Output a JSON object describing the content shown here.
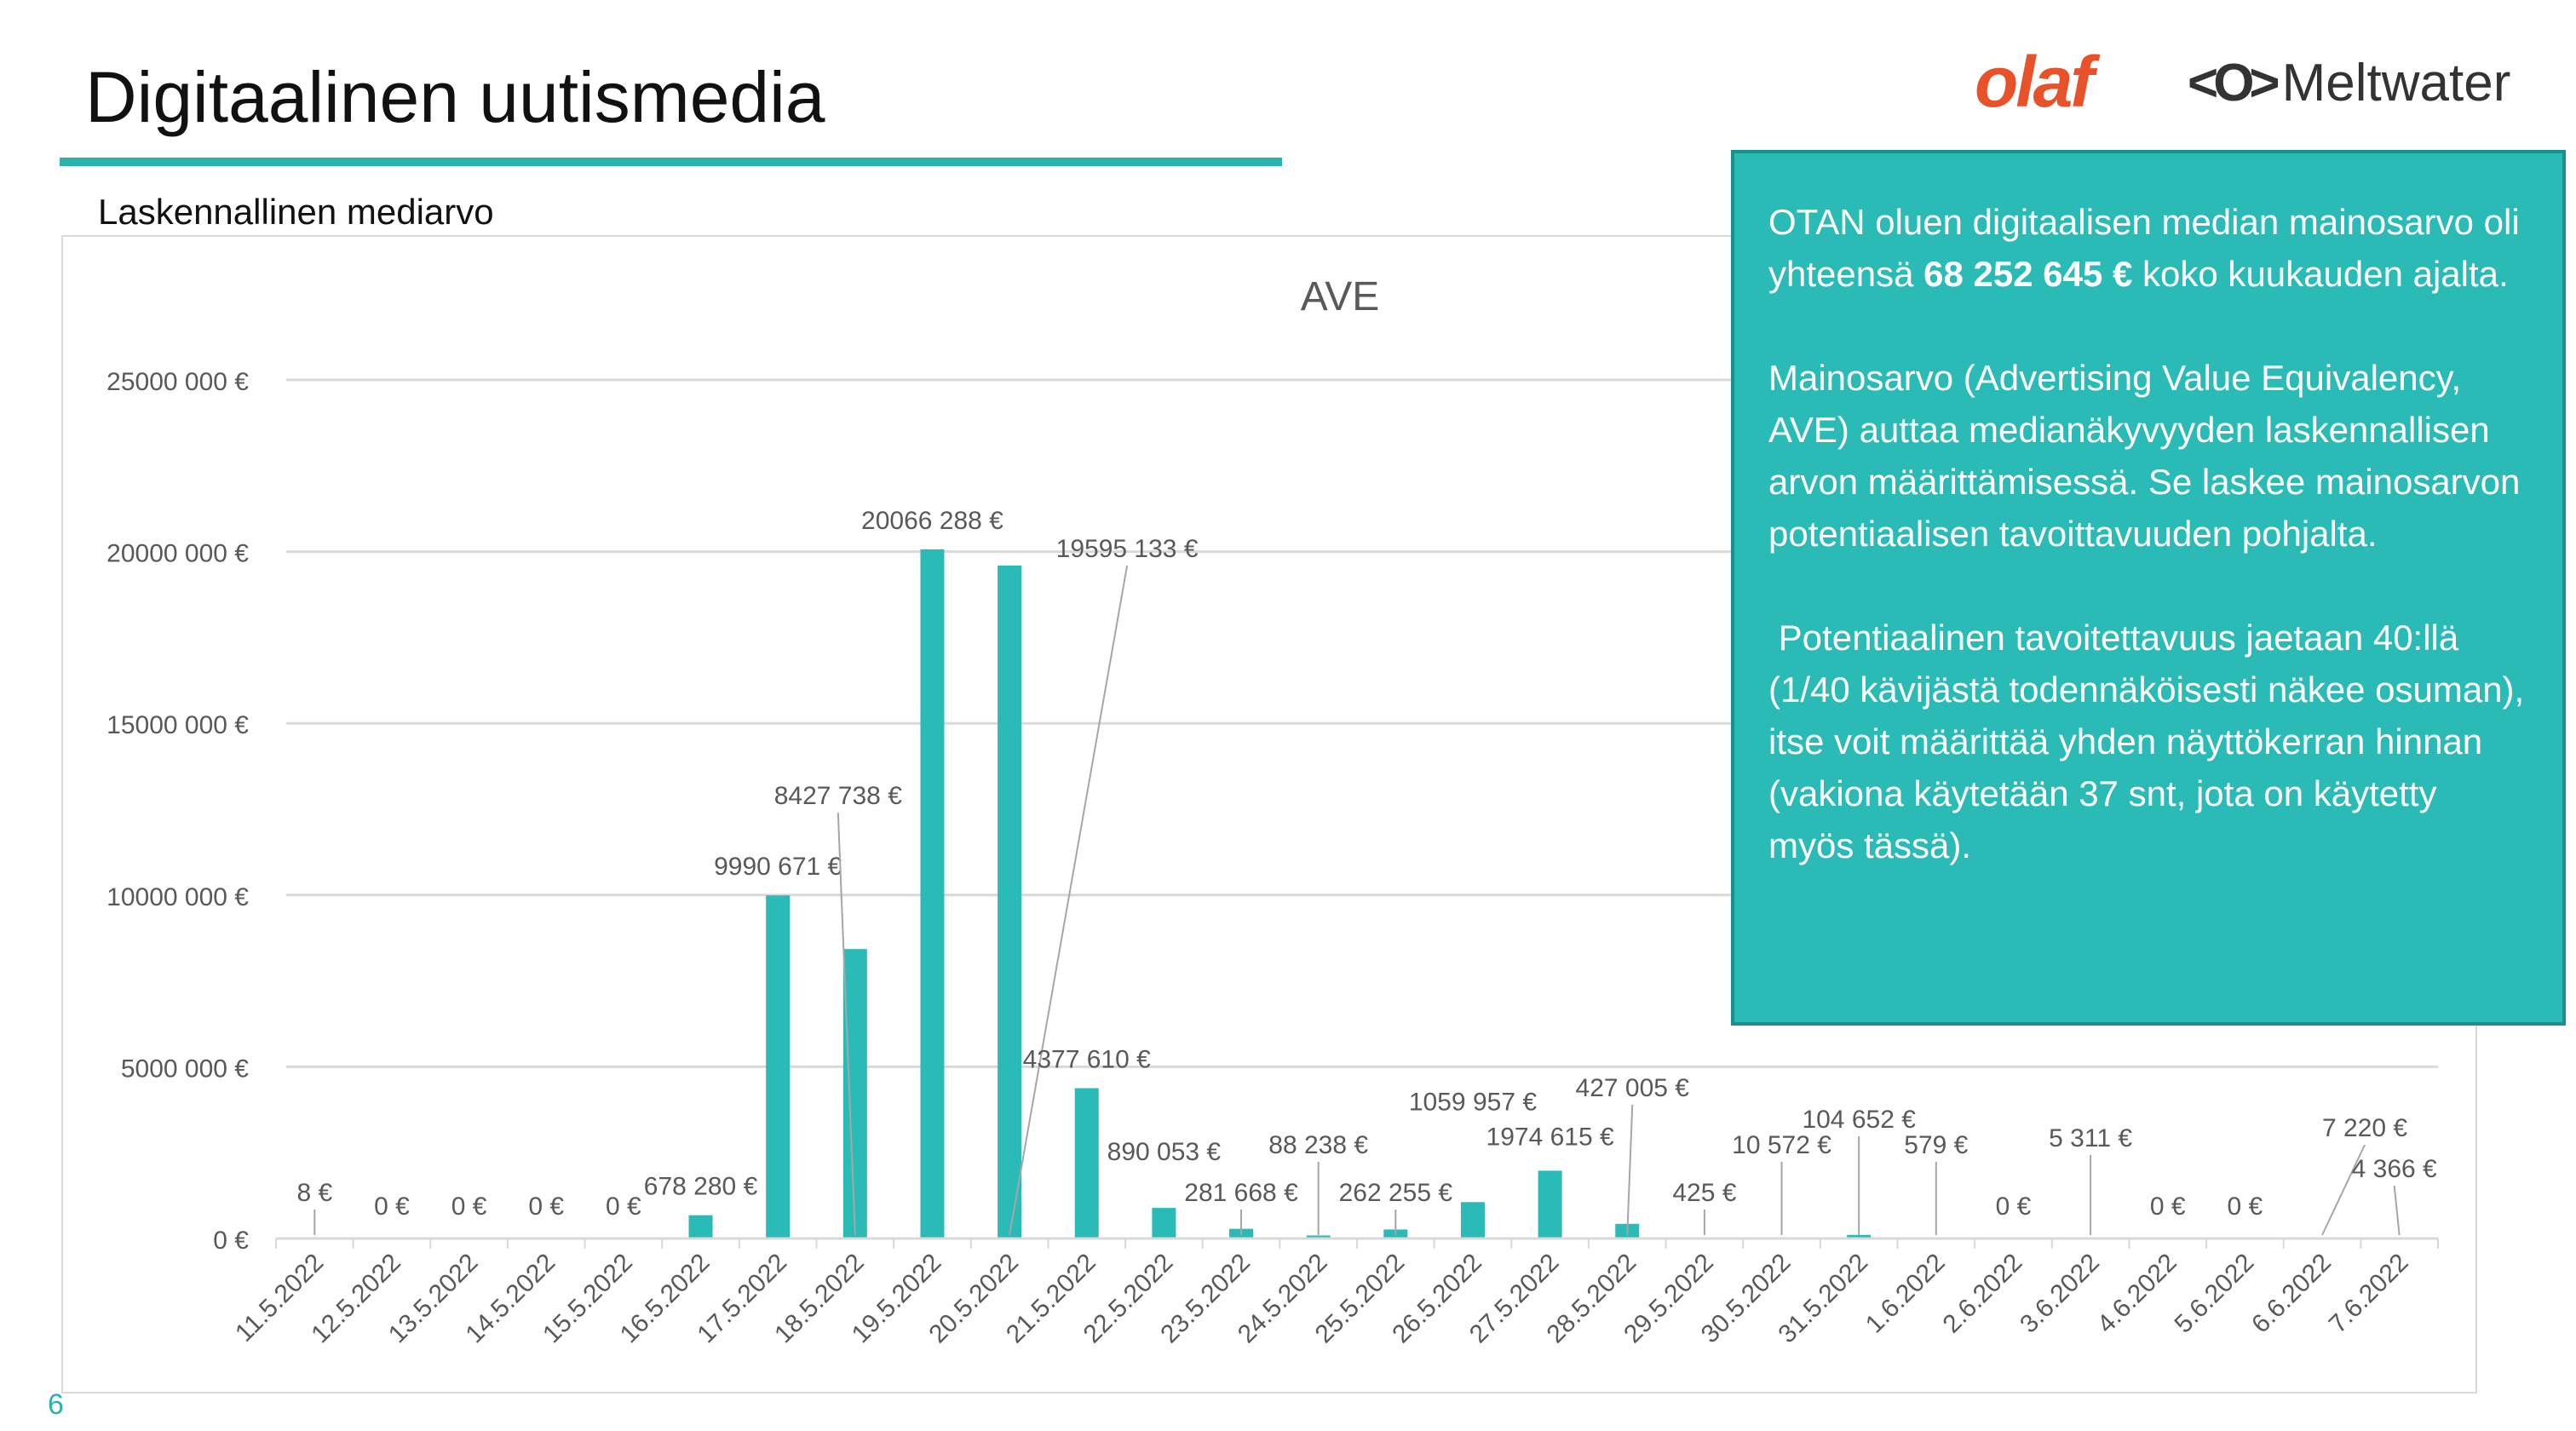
{
  "page": {
    "title": "Digitaalinen uutismedia",
    "subtitle": "Laskennallinen mediarvo",
    "page_number": "6"
  },
  "logos": {
    "olaf": "olaf",
    "meltwater": "Meltwater",
    "meltwater_mark": "<O>"
  },
  "infobox": {
    "p1_pre": "OTAN oluen digitaalisen median mainosarvo oli yhteensä ",
    "p1_bold": "68 252 645 €",
    "p1_post": " koko kuukauden ajalta.",
    "p2": "Mainosarvo (Advertising Value Equivalency, AVE) auttaa medianäkyvyyden laskennallisen arvon määrittämisessä. Se laskee mainosarvon potentiaalisen tavoittavuuden pohjalta.",
    "p3": " Potentiaalinen tavoitettavuus jaetaan 40:llä (1/40 kävijästä todennäköisesti näkee osuman), itse voit määrittää yhden näyttökerran hinnan (vakiona käytetään 37 snt, jota on käytetty myös tässä)."
  },
  "colors": {
    "bar": "#2bbbb7",
    "accent": "#2bb2ad",
    "infobox_bg": "#2bbbb7",
    "grid": "#d9d9d9",
    "label": "#595959"
  },
  "chart_data": {
    "type": "bar",
    "title": "AVE",
    "xlabel": "",
    "ylabel": "",
    "ylim": [
      0,
      25000000
    ],
    "yticks": [
      0,
      5000000,
      10000000,
      15000000,
      20000000,
      25000000
    ],
    "ytick_labels": [
      "0 €",
      "5000 000 €",
      "10000 000 €",
      "15000 000 €",
      "20000 000 €",
      "25000 000 €"
    ],
    "grid": true,
    "legend": "none",
    "categories": [
      "11.5.2022",
      "12.5.2022",
      "13.5.2022",
      "14.5.2022",
      "15.5.2022",
      "16.5.2022",
      "17.5.2022",
      "18.5.2022",
      "19.5.2022",
      "20.5.2022",
      "21.5.2022",
      "22.5.2022",
      "23.5.2022",
      "24.5.2022",
      "25.5.2022",
      "26.5.2022",
      "27.5.2022",
      "28.5.2022",
      "29.5.2022",
      "30.5.2022",
      "31.5.2022",
      "1.6.2022",
      "2.6.2022",
      "3.6.2022",
      "4.6.2022",
      "5.6.2022",
      "6.6.2022",
      "7.6.2022"
    ],
    "values": [
      8,
      0,
      0,
      0,
      0,
      678280,
      9990671,
      8427738,
      20066288,
      19595133,
      4377610,
      890053,
      281668,
      88238,
      262255,
      1059957,
      1974615,
      427005,
      425,
      10572,
      104652,
      579,
      0,
      5311,
      0,
      0,
      7220,
      4366
    ],
    "data_labels": [
      "8 €",
      "0 €",
      "0 €",
      "0 €",
      "0 €",
      "678 280 €",
      "9990 671 €",
      "8427 738 €",
      "20066 288 €",
      "19595 133 €",
      "4377 610 €",
      "890 053 €",
      "281 668 €",
      "88 238 €",
      "262 255 €",
      "1059 957 €",
      "1974 615 €",
      "427 005 €",
      "425 €",
      "10 572 €",
      "104 652 €",
      "579 €",
      "0 €",
      "5 311 €",
      "0 €",
      "0 €",
      "7 220 €",
      "4 366 €"
    ]
  }
}
